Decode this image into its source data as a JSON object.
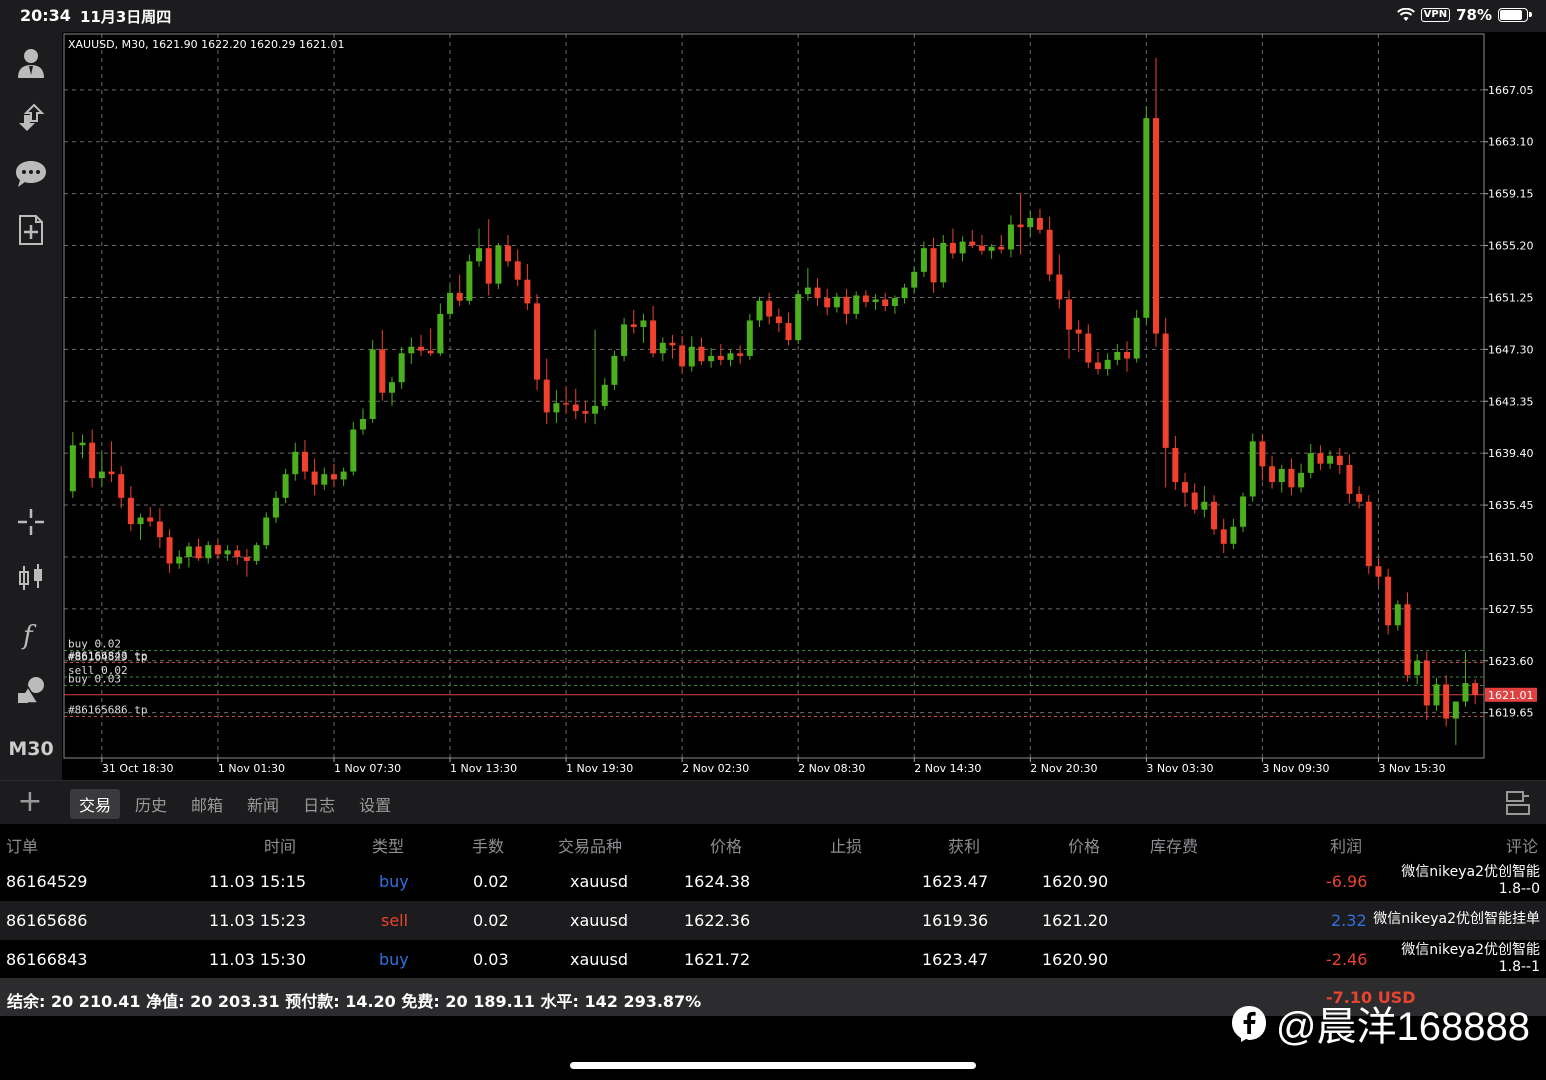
{
  "status": {
    "time": "20:34",
    "date": "11月3日周四",
    "vpn": "VPN",
    "battery": "78%",
    "battery_level": 0.78
  },
  "toolbar": {
    "icons": [
      "account-icon",
      "trade-arrows-icon",
      "chat-icon",
      "new-order-icon",
      "crosshair-icon",
      "candles-icon",
      "indicator-f-icon",
      "objects-icon"
    ],
    "timeframe": "M30"
  },
  "chart": {
    "header": "XAUUSD, M30, 1621.90 1622.20 1620.29 1621.01",
    "colors": {
      "bull": "#4caf1d",
      "bear": "#f0402e",
      "grid": "#6b6b6b",
      "bid": "#e04040"
    },
    "ylim": [
      1616.2,
      1671.3
    ],
    "price_labels": [
      "1667.05",
      "1663.10",
      "1659.15",
      "1655.20",
      "1651.25",
      "1647.30",
      "1643.35",
      "1639.40",
      "1635.45",
      "1631.50",
      "1627.55",
      "1623.60",
      "1619.65"
    ],
    "current_price": "1621.01",
    "time_labels": [
      "31 Oct 18:30",
      "1 Nov 01:30",
      "1 Nov 07:30",
      "1 Nov 13:30",
      "1 Nov 19:30",
      "2 Nov 02:30",
      "2 Nov 08:30",
      "2 Nov 14:30",
      "2 Nov 20:30",
      "3 Nov 03:30",
      "3 Nov 09:30",
      "3 Nov 15:30"
    ],
    "level_lines": [
      {
        "label": "buy 0.02",
        "price": 1624.38,
        "color": "#3a8a3a"
      },
      {
        "label": "#86166843 tp",
        "price": 1623.47,
        "color": "#c24a4a"
      },
      {
        "label": "#86164529 tp",
        "price": 1623.47,
        "color": "#c24a4a"
      },
      {
        "label": "sell 0.02",
        "price": 1622.36,
        "color": "#3a8a3a"
      },
      {
        "label": "buy 0.03",
        "price": 1621.72,
        "color": "#3a8a3a"
      },
      {
        "label": "#86165686 tp",
        "price": 1619.36,
        "color": "#c24a4a"
      }
    ]
  },
  "chart_data": {
    "type": "candlestick",
    "symbol": "XAUUSD",
    "timeframe": "M30",
    "ylim": [
      1616.2,
      1671.3
    ],
    "x_range": [
      "31 Oct 16:00",
      "3 Nov 15:30"
    ],
    "candles": [
      [
        1636.5,
        1641.0,
        1636.0,
        1640.0
      ],
      [
        1640.0,
        1640.8,
        1639.0,
        1640.2
      ],
      [
        1640.2,
        1641.2,
        1636.8,
        1637.5
      ],
      [
        1637.5,
        1639.5,
        1636.8,
        1638.0
      ],
      [
        1638.0,
        1640.3,
        1637.2,
        1637.8
      ],
      [
        1637.8,
        1638.4,
        1635.2,
        1636.0
      ],
      [
        1636.0,
        1636.9,
        1633.5,
        1634.0
      ],
      [
        1634.0,
        1634.8,
        1632.8,
        1634.5
      ],
      [
        1634.5,
        1635.3,
        1633.8,
        1634.2
      ],
      [
        1634.2,
        1635.2,
        1632.2,
        1633.0
      ],
      [
        1633.0,
        1633.6,
        1630.3,
        1631.0
      ],
      [
        1631.0,
        1632.0,
        1630.6,
        1631.5
      ],
      [
        1631.5,
        1632.6,
        1630.7,
        1632.3
      ],
      [
        1632.3,
        1632.9,
        1631.2,
        1631.4
      ],
      [
        1631.4,
        1632.7,
        1631.0,
        1632.4
      ],
      [
        1632.4,
        1632.8,
        1631.3,
        1631.7
      ],
      [
        1631.7,
        1632.4,
        1631.2,
        1632.0
      ],
      [
        1632.0,
        1632.4,
        1630.9,
        1631.5
      ],
      [
        1631.5,
        1632.1,
        1630.0,
        1631.2
      ],
      [
        1631.2,
        1632.6,
        1630.9,
        1632.4
      ],
      [
        1632.4,
        1634.9,
        1632.1,
        1634.5
      ],
      [
        1634.5,
        1636.5,
        1634.1,
        1636.0
      ],
      [
        1636.0,
        1638.2,
        1635.6,
        1637.8
      ],
      [
        1637.8,
        1640.2,
        1637.3,
        1639.5
      ],
      [
        1639.5,
        1640.4,
        1637.4,
        1638.0
      ],
      [
        1638.0,
        1639.0,
        1636.2,
        1637.0
      ],
      [
        1637.0,
        1638.3,
        1636.6,
        1637.8
      ],
      [
        1637.8,
        1638.6,
        1636.8,
        1637.4
      ],
      [
        1637.4,
        1638.3,
        1636.9,
        1638.0
      ],
      [
        1638.0,
        1641.8,
        1637.7,
        1641.2
      ],
      [
        1641.2,
        1642.8,
        1640.8,
        1642.0
      ],
      [
        1642.0,
        1648.0,
        1641.7,
        1647.3
      ],
      [
        1647.3,
        1648.8,
        1643.4,
        1644.0
      ],
      [
        1644.0,
        1645.2,
        1643.0,
        1644.8
      ],
      [
        1644.8,
        1647.5,
        1644.3,
        1647.0
      ],
      [
        1647.0,
        1648.2,
        1646.2,
        1647.5
      ],
      [
        1647.5,
        1648.4,
        1646.8,
        1647.2
      ],
      [
        1647.2,
        1648.9,
        1646.8,
        1647.0
      ],
      [
        1647.0,
        1650.8,
        1646.8,
        1650.0
      ],
      [
        1650.0,
        1652.2,
        1649.6,
        1651.6
      ],
      [
        1651.6,
        1653.0,
        1650.6,
        1651.0
      ],
      [
        1651.0,
        1654.5,
        1650.7,
        1654.0
      ],
      [
        1654.0,
        1656.5,
        1653.6,
        1655.0
      ],
      [
        1655.0,
        1657.2,
        1651.4,
        1652.3
      ],
      [
        1652.3,
        1655.4,
        1651.9,
        1655.2
      ],
      [
        1655.2,
        1656.0,
        1653.6,
        1654.0
      ],
      [
        1654.0,
        1654.9,
        1652.1,
        1652.6
      ],
      [
        1652.6,
        1653.8,
        1650.3,
        1650.8
      ],
      [
        1650.8,
        1651.5,
        1644.2,
        1645.0
      ],
      [
        1645.0,
        1646.6,
        1641.6,
        1642.5
      ],
      [
        1642.5,
        1644.2,
        1641.7,
        1643.2
      ],
      [
        1643.2,
        1644.5,
        1642.4,
        1643.1
      ],
      [
        1643.1,
        1644.3,
        1642.0,
        1642.6
      ],
      [
        1642.6,
        1643.4,
        1641.7,
        1642.4
      ],
      [
        1642.4,
        1648.8,
        1641.6,
        1643.0
      ],
      [
        1643.0,
        1645.1,
        1642.7,
        1644.6
      ],
      [
        1644.6,
        1647.2,
        1644.2,
        1646.8
      ],
      [
        1646.8,
        1649.7,
        1646.4,
        1649.2
      ],
      [
        1649.2,
        1650.3,
        1648.5,
        1649.0
      ],
      [
        1649.0,
        1650.0,
        1647.8,
        1649.5
      ],
      [
        1649.5,
        1650.6,
        1646.7,
        1647.0
      ],
      [
        1647.0,
        1648.2,
        1646.4,
        1647.8
      ],
      [
        1647.8,
        1648.4,
        1646.6,
        1647.6
      ],
      [
        1647.6,
        1648.3,
        1645.5,
        1646.0
      ],
      [
        1646.0,
        1648.3,
        1645.6,
        1647.5
      ],
      [
        1647.5,
        1648.2,
        1646.1,
        1646.4
      ],
      [
        1646.4,
        1647.4,
        1645.9,
        1646.8
      ],
      [
        1646.8,
        1647.7,
        1646.1,
        1646.5
      ],
      [
        1646.5,
        1647.3,
        1646.0,
        1647.0
      ],
      [
        1647.0,
        1647.6,
        1646.2,
        1646.8
      ],
      [
        1646.8,
        1650.0,
        1646.5,
        1649.5
      ],
      [
        1649.5,
        1651.3,
        1649.0,
        1651.0
      ],
      [
        1651.0,
        1651.6,
        1649.2,
        1649.8
      ],
      [
        1649.8,
        1650.4,
        1648.6,
        1649.3
      ],
      [
        1649.3,
        1650.1,
        1647.6,
        1648.0
      ],
      [
        1648.0,
        1651.8,
        1647.7,
        1651.5
      ],
      [
        1651.5,
        1653.5,
        1651.0,
        1652.0
      ],
      [
        1652.0,
        1652.7,
        1650.6,
        1651.2
      ],
      [
        1651.2,
        1651.9,
        1649.9,
        1650.5
      ],
      [
        1650.5,
        1651.6,
        1650.1,
        1651.3
      ],
      [
        1651.3,
        1651.9,
        1649.2,
        1650.0
      ],
      [
        1650.0,
        1651.7,
        1649.6,
        1651.4
      ],
      [
        1651.4,
        1651.8,
        1650.5,
        1650.9
      ],
      [
        1650.9,
        1651.5,
        1650.3,
        1651.1
      ],
      [
        1651.1,
        1651.6,
        1650.2,
        1650.6
      ],
      [
        1650.6,
        1651.4,
        1650.0,
        1651.2
      ],
      [
        1651.2,
        1652.3,
        1650.8,
        1652.0
      ],
      [
        1652.0,
        1653.6,
        1651.6,
        1653.2
      ],
      [
        1653.2,
        1655.5,
        1652.8,
        1655.0
      ],
      [
        1655.0,
        1655.8,
        1651.6,
        1652.4
      ],
      [
        1652.4,
        1656.0,
        1652.0,
        1655.4
      ],
      [
        1655.4,
        1656.5,
        1654.2,
        1654.6
      ],
      [
        1654.6,
        1655.9,
        1654.0,
        1655.5
      ],
      [
        1655.5,
        1656.4,
        1655.0,
        1655.2
      ],
      [
        1655.2,
        1656.0,
        1654.5,
        1654.8
      ],
      [
        1654.8,
        1655.3,
        1654.2,
        1655.1
      ],
      [
        1655.1,
        1656.0,
        1654.6,
        1654.9
      ],
      [
        1654.9,
        1657.5,
        1654.3,
        1656.8
      ],
      [
        1656.8,
        1659.2,
        1654.5,
        1656.6
      ],
      [
        1656.6,
        1657.8,
        1655.9,
        1657.3
      ],
      [
        1657.3,
        1658.0,
        1656.1,
        1656.4
      ],
      [
        1656.4,
        1657.4,
        1652.5,
        1653.0
      ],
      [
        1653.0,
        1654.5,
        1650.4,
        1651.1
      ],
      [
        1651.1,
        1651.8,
        1646.6,
        1648.8
      ],
      [
        1648.8,
        1649.5,
        1647.1,
        1648.5
      ],
      [
        1648.5,
        1649.2,
        1645.9,
        1646.3
      ],
      [
        1646.3,
        1647.1,
        1645.4,
        1645.8
      ],
      [
        1645.8,
        1647.0,
        1645.3,
        1646.5
      ],
      [
        1646.5,
        1647.7,
        1646.1,
        1647.1
      ],
      [
        1647.1,
        1647.9,
        1645.6,
        1646.6
      ],
      [
        1646.6,
        1650.3,
        1646.3,
        1649.7
      ],
      [
        1649.7,
        1665.8,
        1649.3,
        1664.9
      ],
      [
        1664.9,
        1669.5,
        1647.5,
        1648.5
      ],
      [
        1648.5,
        1649.7,
        1636.8,
        1639.8
      ],
      [
        1639.8,
        1640.7,
        1636.6,
        1637.2
      ],
      [
        1637.2,
        1637.9,
        1635.3,
        1636.4
      ],
      [
        1636.4,
        1637.1,
        1634.8,
        1635.1
      ],
      [
        1635.1,
        1636.9,
        1634.5,
        1635.7
      ],
      [
        1635.7,
        1636.2,
        1633.2,
        1633.6
      ],
      [
        1633.6,
        1634.4,
        1631.8,
        1632.5
      ],
      [
        1632.5,
        1634.4,
        1632.1,
        1633.8
      ],
      [
        1633.8,
        1636.4,
        1633.4,
        1636.1
      ],
      [
        1636.1,
        1640.9,
        1635.7,
        1640.3
      ],
      [
        1640.3,
        1640.8,
        1637.3,
        1638.4
      ],
      [
        1638.4,
        1639.2,
        1636.7,
        1637.2
      ],
      [
        1637.2,
        1638.5,
        1636.4,
        1638.2
      ],
      [
        1638.2,
        1639.0,
        1636.2,
        1636.8
      ],
      [
        1636.8,
        1638.6,
        1636.4,
        1637.9
      ],
      [
        1637.9,
        1640.1,
        1637.5,
        1639.4
      ],
      [
        1639.4,
        1640.0,
        1638.1,
        1638.6
      ],
      [
        1638.6,
        1639.6,
        1638.2,
        1639.2
      ],
      [
        1639.2,
        1639.8,
        1637.8,
        1638.5
      ],
      [
        1638.5,
        1639.3,
        1635.6,
        1636.3
      ],
      [
        1636.3,
        1636.9,
        1635.2,
        1635.7
      ],
      [
        1635.7,
        1636.2,
        1630.2,
        1630.8
      ],
      [
        1630.8,
        1631.4,
        1629.3,
        1630.0
      ],
      [
        1630.0,
        1630.6,
        1625.6,
        1626.3
      ],
      [
        1626.3,
        1628.2,
        1625.9,
        1627.9
      ],
      [
        1627.9,
        1628.8,
        1622.0,
        1622.5
      ],
      [
        1622.5,
        1624.1,
        1621.8,
        1623.6
      ],
      [
        1623.6,
        1624.3,
        1619.1,
        1620.2
      ],
      [
        1620.2,
        1622.3,
        1619.8,
        1621.8
      ],
      [
        1621.8,
        1622.5,
        1618.6,
        1619.2
      ],
      [
        1619.2,
        1620.5,
        1617.2,
        1620.5
      ],
      [
        1620.5,
        1624.3,
        1620.1,
        1621.9
      ],
      [
        1621.9,
        1622.2,
        1620.29,
        1621.01
      ]
    ]
  },
  "tabs": {
    "items": [
      "交易",
      "历史",
      "邮箱",
      "新闻",
      "日志",
      "设置"
    ],
    "active": 0
  },
  "table": {
    "headers": [
      "订单",
      "时间",
      "类型",
      "手数",
      "交易品种",
      "价格",
      "止损",
      "获利",
      "价格",
      "库存费",
      "利润",
      "评论"
    ],
    "rows": [
      {
        "order": "86164529",
        "time": "11.03 15:15",
        "type": "buy",
        "lots": "0.02",
        "symbol": "xauusd",
        "price": "1624.38",
        "sl": "",
        "tp": "1623.47",
        "cur": "1620.90",
        "swap": "",
        "profit": "-6.96",
        "comment1": "微信nikeya2优创智能",
        "comment2": "1.8--0"
      },
      {
        "order": "86165686",
        "time": "11.03 15:23",
        "type": "sell",
        "lots": "0.02",
        "symbol": "xauusd",
        "price": "1622.36",
        "sl": "",
        "tp": "1619.36",
        "cur": "1621.20",
        "swap": "",
        "profit": "2.32",
        "comment1": "微信nikeya2优创智能挂单",
        "comment2": ""
      },
      {
        "order": "86166843",
        "time": "11.03 15:30",
        "type": "buy",
        "lots": "0.03",
        "symbol": "xauusd",
        "price": "1621.72",
        "sl": "",
        "tp": "1623.47",
        "cur": "1620.90",
        "swap": "",
        "profit": "-2.46",
        "comment1": "微信nikeya2优创智能",
        "comment2": "1.8--1"
      }
    ]
  },
  "summary": {
    "text": "结余:  20 210.41  净值:  20 203.31  预付款:  14.20  免费:  20 189.11  水平:  142 293.87%",
    "profit": "-7.10  USD"
  },
  "watermark": "@晨洋168888"
}
